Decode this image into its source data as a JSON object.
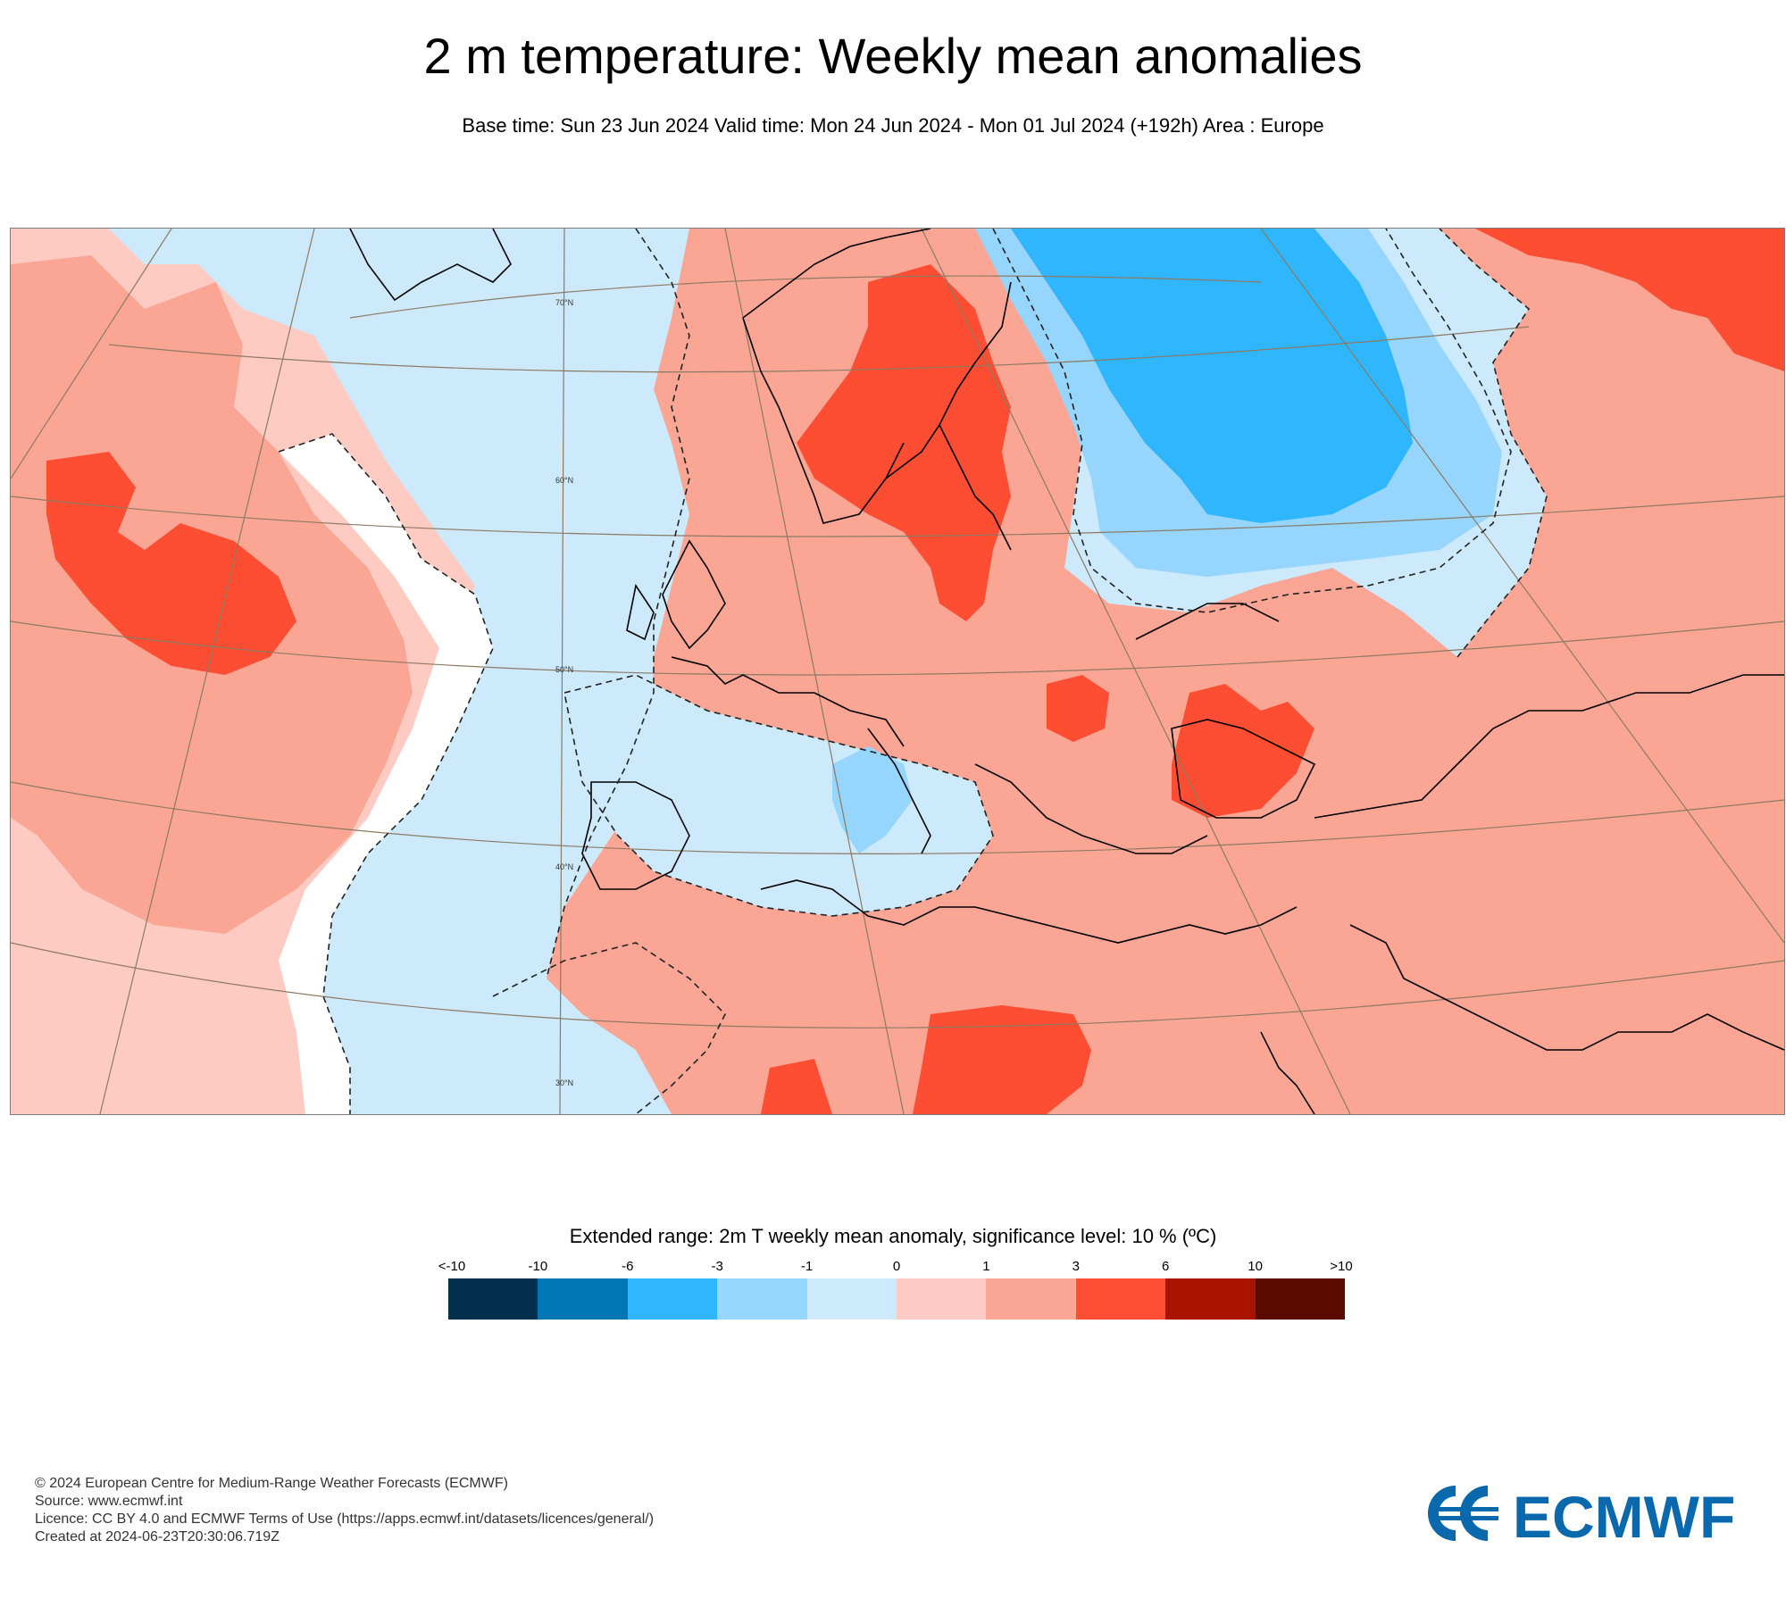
{
  "title": "2 m temperature: Weekly mean anomalies",
  "subtitle": "Base time: Sun 23 Jun 2024 Valid time: Mon 24 Jun 2024 - Mon 01 Jul 2024 (+192h) Area : Europe",
  "map": {
    "lat_labels": [
      "70°N",
      "60°N",
      "50°N",
      "40°N",
      "30°N"
    ],
    "colors": {
      "ocean_cool": "#cce9fc",
      "light_blue": "#96d5fd",
      "mid_blue": "#30b6fd",
      "warm_light": "#fecbc3",
      "warm_mid": "#fba595",
      "warm_strong": "#fd4e33",
      "coast": "#000000",
      "graticule": "#8c7a62"
    }
  },
  "legend": {
    "title": "Extended range: 2m T weekly mean anomaly, significance level: 10 % (ºC)",
    "ticks": [
      "<-10",
      "-10",
      "-6",
      "-3",
      "-1",
      "0",
      "1",
      "3",
      "6",
      "10",
      ">10"
    ],
    "colors": [
      "#02304d",
      "#0376b6",
      "#2fb6fd",
      "#97d6fd",
      "#cdebfc",
      "#fecbc4",
      "#fca695",
      "#fe4e33",
      "#ab1301",
      "#5c0a00"
    ]
  },
  "footer": {
    "line1": "© 2024 European Centre for Medium-Range Weather Forecasts (ECMWF)",
    "line2": "Source: www.ecmwf.int",
    "line3": "Licence: CC BY 4.0 and ECMWF Terms of Use (https://apps.ecmwf.int/datasets/licences/general/)",
    "line4": "Created at 2024-06-23T20:30:06.719Z"
  },
  "logo": {
    "text": "ECMWF",
    "color": "#0a68ad"
  }
}
